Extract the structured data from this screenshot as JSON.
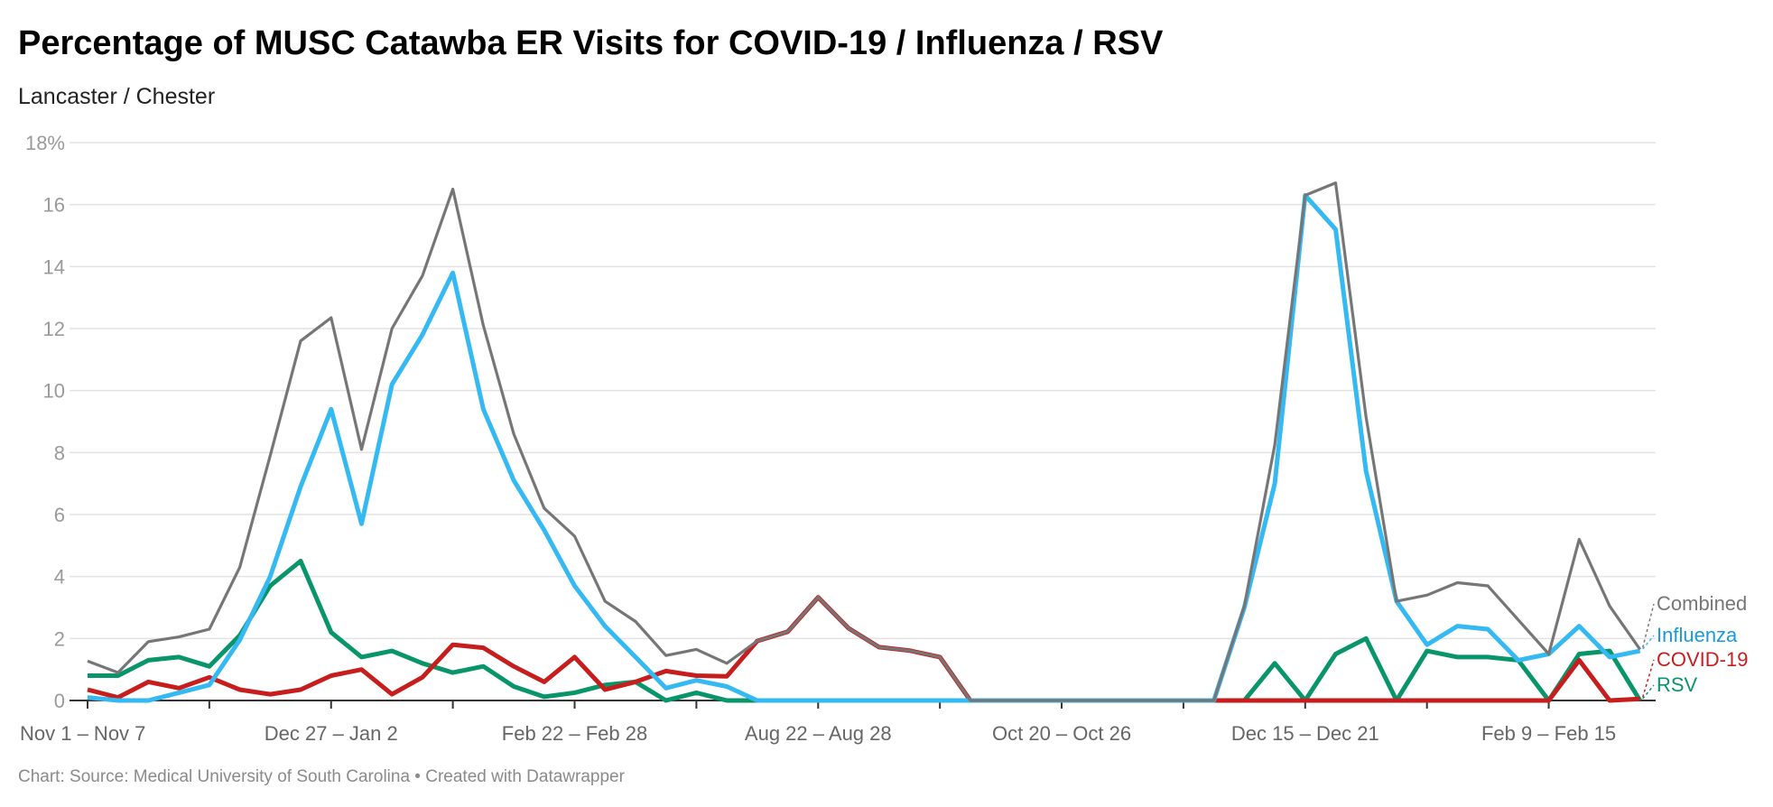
{
  "title": "Percentage of MUSC Catawba ER Visits for COVID-19 / Influenza / RSV",
  "subtitle": "Lancaster / Chester",
  "footer": "Chart: Source: Medical University of South Carolina • Created with Datawrapper",
  "chart_data": {
    "type": "line",
    "ylim": [
      0,
      18
    ],
    "y_ticks": [
      0,
      2,
      4,
      6,
      8,
      10,
      12,
      14,
      16,
      18
    ],
    "y_tick_labels": [
      "0",
      "2",
      "4",
      "6",
      "8",
      "10",
      "12",
      "14",
      "16",
      "18%"
    ],
    "grid": true,
    "legend": "right, labels at line ends",
    "x_tick_labels": [
      {
        "index": 0,
        "label": "Nov 1 – Nov 7"
      },
      {
        "index": 8,
        "label": "Dec 27 – Jan 2"
      },
      {
        "index": 16,
        "label": "Feb 22 – Feb 28"
      },
      {
        "index": 24,
        "label": "Aug 22 – Aug 28"
      },
      {
        "index": 32,
        "label": "Oct 20 – Oct 26"
      },
      {
        "index": 40,
        "label": "Dec 15 – Dec 21"
      },
      {
        "index": 48,
        "label": "Feb 9 – Feb 15"
      }
    ],
    "series": [
      {
        "name": "Combined",
        "color": "#767676",
        "label_color": "#767676",
        "values": [
          1.27,
          0.9,
          1.9,
          2.05,
          2.3,
          4.3,
          7.9,
          11.6,
          12.35,
          8.1,
          12.0,
          13.7,
          16.5,
          12.1,
          8.6,
          6.2,
          5.3,
          3.2,
          2.55,
          1.45,
          1.65,
          1.2,
          1.92,
          2.22,
          3.33,
          2.33,
          1.72,
          1.61,
          1.4,
          0,
          0,
          0,
          0,
          0,
          0,
          0,
          0,
          0,
          3.05,
          8.25,
          16.3,
          16.7,
          9.15,
          3.2,
          3.4,
          3.8,
          3.7,
          2.6,
          1.5,
          5.2,
          3.05,
          1.65
        ]
      },
      {
        "name": "Influenza",
        "color": "#35b9f2",
        "label_color": "#1a9bd7",
        "values": [
          0.1,
          0,
          0,
          0.25,
          0.5,
          1.95,
          4.0,
          6.9,
          9.4,
          5.7,
          10.2,
          11.8,
          13.8,
          9.4,
          7.1,
          5.5,
          3.7,
          2.4,
          1.4,
          0.4,
          0.65,
          0.45,
          0,
          0,
          0,
          0,
          0,
          0,
          0,
          0,
          0,
          0,
          0,
          0,
          0,
          0,
          0,
          0,
          3.0,
          7.0,
          16.3,
          15.2,
          7.4,
          3.2,
          1.8,
          2.4,
          2.3,
          1.3,
          1.5,
          2.4,
          1.4,
          1.6
        ]
      },
      {
        "name": "COVID-19",
        "color": "#c71e1d",
        "label_color": "#c71e1d",
        "values": [
          0.35,
          0.1,
          0.6,
          0.4,
          0.75,
          0.35,
          0.2,
          0.35,
          0.8,
          1.0,
          0.2,
          0.75,
          1.8,
          1.7,
          1.1,
          0.6,
          1.4,
          0.35,
          0.6,
          0.95,
          0.8,
          0.78,
          1.92,
          2.22,
          3.33,
          2.33,
          1.72,
          1.61,
          1.4,
          0,
          0,
          0,
          0,
          0,
          0,
          0,
          0,
          0,
          0,
          0,
          0,
          0,
          0,
          0,
          0,
          0,
          0,
          0,
          0,
          1.3,
          0,
          0.05
        ]
      },
      {
        "name": "RSV",
        "color": "#09956a",
        "label_color": "#09956a",
        "values": [
          0.8,
          0.8,
          1.3,
          1.4,
          1.1,
          2.1,
          3.7,
          4.5,
          2.2,
          1.4,
          1.6,
          1.2,
          0.9,
          1.1,
          0.45,
          0.12,
          0.25,
          0.5,
          0.6,
          0,
          0.25,
          0,
          0,
          0,
          0,
          0,
          0,
          0,
          0,
          0,
          0,
          0,
          0,
          0,
          0,
          0,
          0,
          0,
          0,
          1.2,
          0,
          1.5,
          2.0,
          0,
          1.6,
          1.4,
          1.4,
          1.3,
          0,
          1.5,
          1.6,
          0
        ]
      }
    ]
  }
}
